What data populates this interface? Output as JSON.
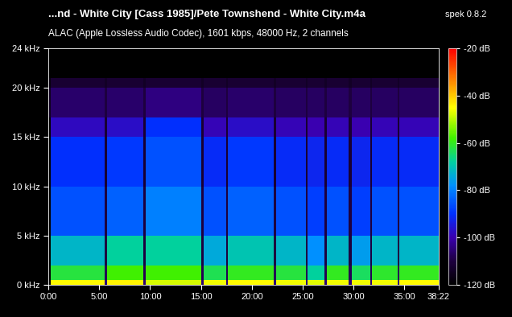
{
  "chart_data": {
    "type": "heatmap",
    "title": "...nd - White City [Cass 1985]/Pete Townshend - White City.m4a",
    "app_label": "spek 0.8.2",
    "subtitle": "ALAC (Apple Lossless Audio Codec), 1601 kbps, 48000 Hz, 2 channels",
    "grid": false,
    "time_edges": [
      0,
      15,
      330,
      345,
      560,
      575,
      900,
      915,
      1050,
      1060,
      1330,
      1345,
      1520,
      1530,
      1630,
      1640,
      1770,
      1790,
      1900,
      1910,
      2060,
      2070,
      2302
    ],
    "freq_edges": [
      0,
      0.5,
      2,
      5,
      10,
      15,
      17,
      20,
      21,
      24
    ],
    "cells": [
      [
        -120,
        -45,
        -105,
        -44,
        -105,
        -48,
        -105,
        -46,
        -105,
        -45,
        -105,
        -46,
        -105,
        -47,
        -105,
        -46,
        -105,
        -46,
        -105,
        -46,
        -105,
        -45
      ],
      [
        -120,
        -62,
        -108,
        -58,
        -108,
        -58,
        -108,
        -63,
        -108,
        -60,
        -108,
        -62,
        -108,
        -68,
        -108,
        -60,
        -108,
        -64,
        -108,
        -61,
        -108,
        -60
      ],
      [
        -120,
        -72,
        -110,
        -68,
        -110,
        -68,
        -110,
        -74,
        -110,
        -70,
        -110,
        -72,
        -110,
        -78,
        -110,
        -72,
        -110,
        -76,
        -110,
        -72,
        -110,
        -72
      ],
      [
        -120,
        -86,
        -110,
        -84,
        -110,
        -80,
        -110,
        -86,
        -110,
        -84,
        -110,
        -86,
        -110,
        -88,
        -110,
        -86,
        -110,
        -88,
        -110,
        -86,
        -110,
        -86
      ],
      [
        -120,
        -90,
        -112,
        -89,
        -112,
        -86,
        -112,
        -91,
        -112,
        -89,
        -112,
        -91,
        -112,
        -92,
        -112,
        -91,
        -112,
        -92,
        -112,
        -91,
        -112,
        -91
      ],
      [
        -120,
        -98,
        -112,
        -97,
        -112,
        -90,
        -112,
        -99,
        -112,
        -97,
        -112,
        -99,
        -112,
        -100,
        -112,
        -99,
        -112,
        -100,
        -112,
        -99,
        -112,
        -99
      ],
      [
        -115,
        -106,
        -110,
        -106,
        -110,
        -104,
        -110,
        -107,
        -110,
        -106,
        -110,
        -107,
        -110,
        -107,
        -110,
        -107,
        -110,
        -107,
        -110,
        -107,
        -110,
        -107
      ],
      [
        -118,
        -112,
        -114,
        -112,
        -114,
        -112,
        -114,
        -112,
        -114,
        -112,
        -114,
        -112,
        -114,
        -112,
        -114,
        -112,
        -114,
        -112,
        -114,
        -112,
        -114,
        -112
      ],
      [
        -120,
        -120,
        -120,
        -120,
        -120,
        -120,
        -120,
        -120,
        -120,
        -120,
        -120,
        -120,
        -120,
        -120,
        -120,
        -120,
        -120,
        -120,
        -120,
        -120,
        -120,
        -120
      ]
    ],
    "xlim": [
      0,
      2302
    ],
    "xticks": [
      {
        "value": 0,
        "label": "0:00"
      },
      {
        "value": 300,
        "label": "5:00"
      },
      {
        "value": 600,
        "label": "10:00"
      },
      {
        "value": 900,
        "label": "15:00"
      },
      {
        "value": 1200,
        "label": "20:00"
      },
      {
        "value": 1500,
        "label": "25:00"
      },
      {
        "value": 1800,
        "label": "30:00"
      },
      {
        "value": 2100,
        "label": "35:00"
      },
      {
        "value": 2302,
        "label": "38:22"
      }
    ],
    "ylim": [
      0,
      24
    ],
    "yticks": [
      {
        "value": 0,
        "label": "0 kHz"
      },
      {
        "value": 5,
        "label": "5 kHz"
      },
      {
        "value": 10,
        "label": "10 kHz"
      },
      {
        "value": 15,
        "label": "15 kHz"
      },
      {
        "value": 20,
        "label": "20 kHz"
      },
      {
        "value": 24,
        "label": "24 kHz"
      }
    ],
    "colorbar_range": [
      -120,
      -20
    ],
    "colorbar_ticks": [
      {
        "value": -20,
        "label": "-20 dB"
      },
      {
        "value": -40,
        "label": "-40 dB"
      },
      {
        "value": -60,
        "label": "-60 dB"
      },
      {
        "value": -80,
        "label": "-80 dB"
      },
      {
        "value": -100,
        "label": "-100 dB"
      },
      {
        "value": -120,
        "label": "-120 dB"
      }
    ]
  }
}
